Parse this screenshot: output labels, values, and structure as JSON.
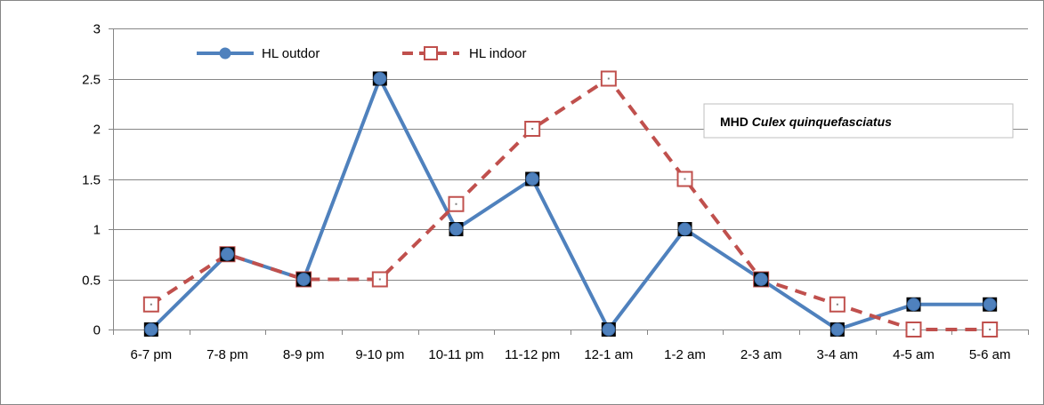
{
  "chart_data": {
    "type": "line",
    "categories": [
      "6-7 pm",
      "7-8 pm",
      "8-9 pm",
      "9-10 pm",
      "10-11 pm",
      "11-12 pm",
      "12-1 am",
      "1-2 am",
      "2-3 am",
      "3-4 am",
      "4-5 am",
      "5-6 am"
    ],
    "series": [
      {
        "name": "HL outdor",
        "values": [
          0,
          0.75,
          0.5,
          2.5,
          1,
          1.5,
          0,
          1,
          0.5,
          0,
          0.25,
          0.25
        ],
        "color": "#4f81bd",
        "line_style": "solid",
        "marker": "filled-circle"
      },
      {
        "name": "HL indoor",
        "values": [
          0.25,
          0.75,
          0.5,
          0.5,
          1.25,
          2,
          2.5,
          1.5,
          0.5,
          0.25,
          0,
          0
        ],
        "color": "#c0504d",
        "line_style": "dashed",
        "marker": "open-square"
      }
    ],
    "yticks": [
      "0",
      "0.5",
      "1",
      "1.5",
      "2",
      "2.5",
      "3"
    ],
    "ylim": [
      0,
      3
    ],
    "grid": true,
    "legend_position": "top-left",
    "annotation": {
      "prefix": "MHD ",
      "species": "Culex quinquefasciatus"
    }
  }
}
